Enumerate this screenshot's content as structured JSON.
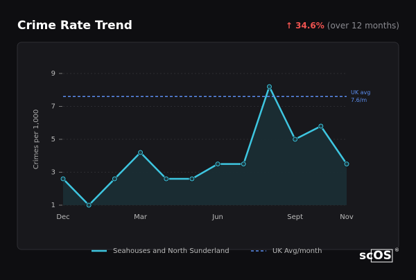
{
  "header": {
    "change": "↑ 34.6%",
    "change_note": "(over 12 months)",
    "brand": "scOS"
  },
  "chart_data": {
    "type": "line",
    "title": "Crime Rate Trend",
    "y_label": "Crimes per 1,000",
    "categories": [
      "Dec",
      null,
      null,
      "Mar",
      null,
      null,
      "Jun",
      null,
      null,
      "Sept",
      null,
      "Nov"
    ],
    "series": [
      {
        "name": "Seahouses and North Sunderland",
        "color": "#3ec6e0",
        "values": [
          2.6,
          1.0,
          2.6,
          4.2,
          2.6,
          2.6,
          3.5,
          3.5,
          8.2,
          5.0,
          5.8,
          3.5
        ]
      }
    ],
    "ref_line": {
      "name": "UK Avg/month",
      "value": 7.6,
      "label": [
        "UK avg",
        "7.6/m"
      ],
      "color": "#5b8def"
    },
    "ylim": [
      1,
      9
    ],
    "yticks": [
      1,
      3,
      5,
      7,
      9
    ],
    "grid": true
  }
}
